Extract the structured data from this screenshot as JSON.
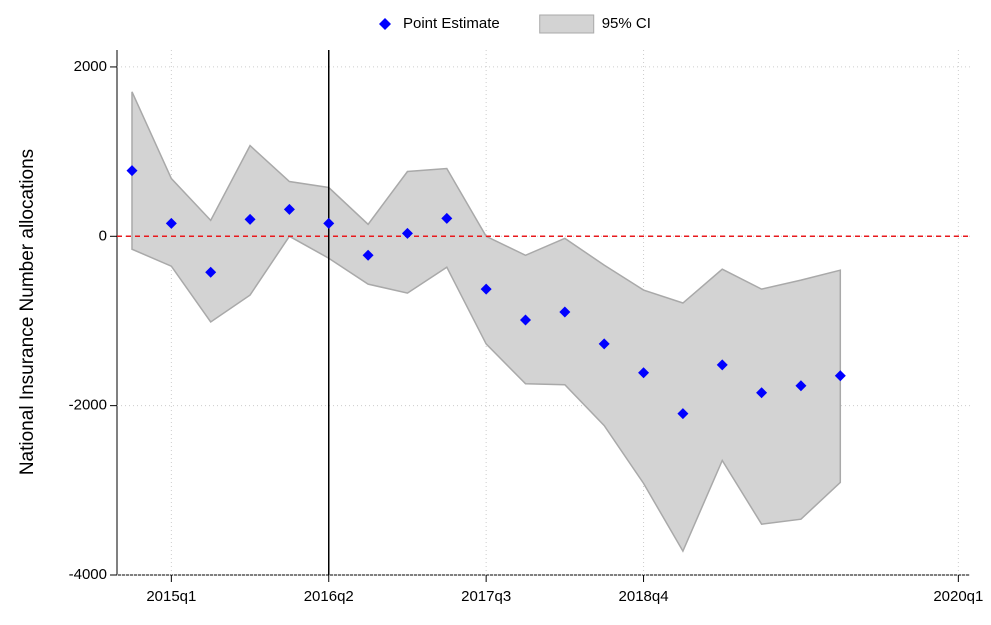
{
  "chart_data": {
    "type": "line",
    "ylabel": "National Insurance Number allocations",
    "categories": [
      null,
      "2015q1",
      null,
      null,
      null,
      "2016q2",
      null,
      null,
      null,
      "2017q3",
      null,
      null,
      null,
      "2018q4",
      null,
      null,
      null,
      null,
      null,
      null,
      null,
      "2020q1"
    ],
    "series": [
      {
        "name": "Point Estimate",
        "color": "#0000ff",
        "marker": "diamond",
        "values": [
          776,
          153,
          -424,
          200,
          318,
          153,
          -224,
          35,
          212,
          -624,
          -988,
          -894,
          -1271,
          -1612,
          -2094,
          -1518,
          -1847,
          -1765,
          -1647,
          null,
          null,
          null
        ]
      },
      {
        "name": "95% CI",
        "color": "#d3d3d3",
        "edge": "#a9a9a9",
        "type": "band",
        "upper": [
          1706,
          682,
          188,
          1071,
          647,
          576,
          141,
          765,
          800,
          0,
          -224,
          -24,
          -341,
          -635,
          -788,
          -388,
          -624,
          -518,
          -400,
          null,
          null,
          null
        ],
        "lower": [
          -153,
          -353,
          -1012,
          -694,
          0,
          -259,
          -565,
          -671,
          -365,
          -1271,
          -1741,
          -1753,
          -2235,
          -2918,
          -3718,
          -2647,
          -3400,
          -3341,
          -2906,
          null,
          null,
          null
        ]
      }
    ],
    "ylim": [
      -4000,
      2200
    ],
    "yticks": [
      -4000,
      -2000,
      0,
      2000
    ],
    "grid": true,
    "hline": 0,
    "hline_color": "#e8191c",
    "vline": "2016q2",
    "legend": "top"
  }
}
